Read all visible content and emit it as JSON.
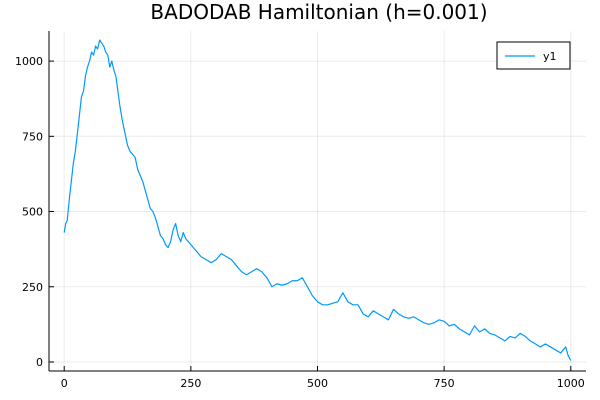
{
  "chart_data": {
    "type": "line",
    "title": "BADODAB Hamiltonian (h=0.001)",
    "xlabel": "",
    "ylabel": "",
    "xlim": [
      -30,
      1030
    ],
    "ylim": [
      -30,
      1100
    ],
    "xticks": [
      0,
      250,
      500,
      750,
      1000
    ],
    "yticks": [
      0,
      250,
      500,
      750,
      1000
    ],
    "grid": true,
    "legend": "top-right",
    "series": [
      {
        "name": "y1",
        "color": "#009AFA",
        "x": [
          0,
          3,
          6,
          10,
          14,
          18,
          22,
          26,
          30,
          34,
          38,
          42,
          46,
          50,
          54,
          58,
          62,
          66,
          70,
          74,
          78,
          82,
          86,
          90,
          94,
          98,
          102,
          106,
          110,
          115,
          120,
          125,
          130,
          135,
          140,
          145,
          150,
          155,
          160,
          165,
          170,
          175,
          180,
          185,
          190,
          195,
          200,
          205,
          210,
          215,
          220,
          225,
          230,
          235,
          240,
          245,
          250,
          255,
          260,
          265,
          270,
          275,
          280,
          290,
          300,
          310,
          320,
          330,
          340,
          350,
          360,
          370,
          380,
          390,
          400,
          410,
          420,
          430,
          440,
          450,
          460,
          470,
          480,
          490,
          500,
          510,
          520,
          530,
          540,
          550,
          560,
          570,
          580,
          590,
          600,
          610,
          620,
          630,
          640,
          650,
          660,
          670,
          680,
          690,
          700,
          710,
          720,
          730,
          740,
          750,
          760,
          770,
          780,
          790,
          800,
          810,
          820,
          830,
          840,
          850,
          860,
          870,
          880,
          890,
          900,
          910,
          920,
          930,
          940,
          950,
          960,
          970,
          980,
          985,
          990,
          995,
          1000
        ],
        "y": [
          430,
          460,
          470,
          540,
          600,
          660,
          700,
          760,
          820,
          880,
          900,
          950,
          980,
          1000,
          1030,
          1020,
          1050,
          1040,
          1070,
          1060,
          1050,
          1030,
          1020,
          980,
          1000,
          970,
          950,
          900,
          850,
          800,
          760,
          720,
          700,
          690,
          680,
          640,
          620,
          600,
          570,
          540,
          510,
          500,
          480,
          450,
          420,
          410,
          390,
          380,
          400,
          440,
          460,
          420,
          400,
          430,
          410,
          400,
          390,
          380,
          370,
          360,
          350,
          345,
          340,
          330,
          340,
          360,
          350,
          340,
          320,
          300,
          290,
          300,
          310,
          300,
          280,
          250,
          260,
          255,
          260,
          270,
          270,
          280,
          250,
          220,
          200,
          190,
          190,
          195,
          200,
          230,
          200,
          190,
          190,
          160,
          150,
          170,
          160,
          150,
          140,
          175,
          160,
          150,
          145,
          150,
          140,
          130,
          125,
          130,
          140,
          135,
          120,
          125,
          110,
          100,
          90,
          120,
          100,
          110,
          95,
          90,
          80,
          70,
          85,
          80,
          95,
          85,
          70,
          60,
          50,
          60,
          50,
          40,
          30,
          40,
          50,
          20,
          5
        ]
      }
    ]
  }
}
